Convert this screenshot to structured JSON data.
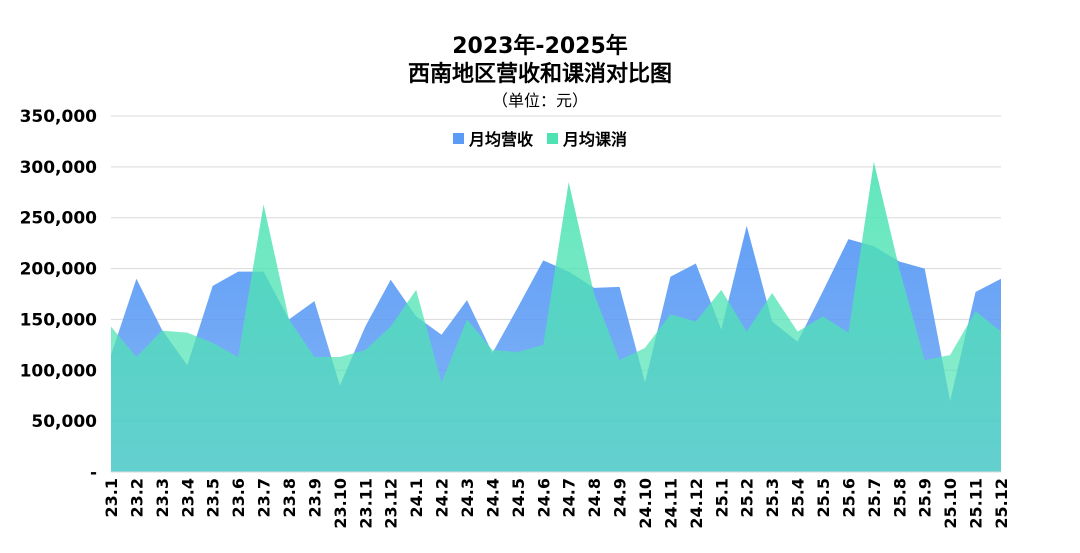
{
  "chart_data": {
    "type": "area",
    "title_line1": "2023年-2025年",
    "title_line2": "西南地区营收和课消对比图",
    "subtitle": "（单位：元）",
    "ylim": [
      0,
      350000
    ],
    "yticks": [
      0,
      50000,
      100000,
      150000,
      200000,
      250000,
      300000,
      350000
    ],
    "ytick_labels": [
      "-",
      "50,000",
      "100,000",
      "150,000",
      "200,000",
      "250,000",
      "300,000",
      "350,000"
    ],
    "grid": true,
    "legend_position": "top-center",
    "categories": [
      "23.1",
      "23.2",
      "23.3",
      "23.4",
      "23.5",
      "23.6",
      "23.7",
      "23.8",
      "23.9",
      "23.10",
      "23.11",
      "23.12",
      "24.1",
      "24.2",
      "24.3",
      "24.4",
      "24.5",
      "24.6",
      "24.7",
      "24.8",
      "24.9",
      "24.10",
      "24.11",
      "24.12",
      "25.1",
      "25.2",
      "25.3",
      "25.4",
      "25.5",
      "25.6",
      "25.7",
      "25.8",
      "25.9",
      "25.10",
      "25.11",
      "25.12"
    ],
    "series": [
      {
        "name": "月均营收",
        "color": "#5B9BF5",
        "values": [
          115000,
          190000,
          140000,
          105000,
          183000,
          197000,
          197000,
          150000,
          168000,
          85000,
          143000,
          189000,
          153000,
          135000,
          169000,
          117000,
          162000,
          208000,
          197000,
          181000,
          182000,
          88000,
          192000,
          205000,
          140000,
          242000,
          148000,
          128000,
          178000,
          229000,
          222000,
          207000,
          200000,
          70000,
          177000,
          190000
        ]
      },
      {
        "name": "月均课消",
        "color": "#4FE3B4",
        "values": [
          143000,
          113000,
          139000,
          137000,
          127000,
          113000,
          263000,
          150000,
          113000,
          113000,
          120000,
          143000,
          179000,
          88000,
          150000,
          120000,
          118000,
          125000,
          285000,
          175000,
          110000,
          122000,
          155000,
          148000,
          179000,
          138000,
          176000,
          138000,
          153000,
          137000,
          305000,
          200000,
          110000,
          115000,
          158000,
          138000
        ]
      }
    ]
  }
}
